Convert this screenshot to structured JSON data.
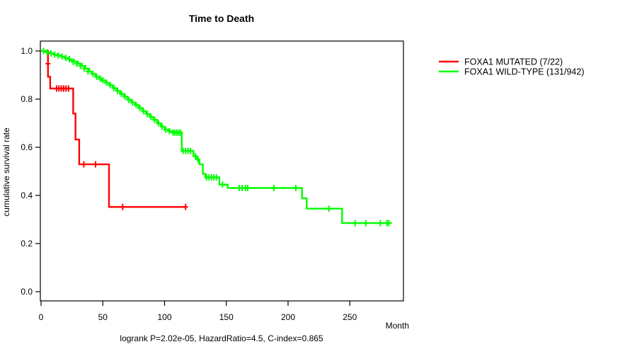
{
  "chart_data": {
    "type": "line",
    "subtype": "kaplan-meier-step-curves",
    "title": "Time to Death",
    "xlabel": "Month",
    "ylabel": "cumulative survival rate",
    "annotation": "logrank P=2.02e-05, HazardRatio=4.5, C-index=0.865",
    "xlim": [
      0,
      293
    ],
    "ylim": [
      0.0,
      1.0
    ],
    "grid": false,
    "legend_position": "outside-right",
    "xticks": [
      {
        "v": 0,
        "label": "0"
      },
      {
        "v": 50,
        "label": "50"
      },
      {
        "v": 100,
        "label": "100"
      },
      {
        "v": 150,
        "label": "150"
      },
      {
        "v": 200,
        "label": "200"
      },
      {
        "v": 250,
        "label": "250"
      }
    ],
    "yticks": [
      {
        "v": 0.0,
        "label": "0.0"
      },
      {
        "v": 0.2,
        "label": "0.2"
      },
      {
        "v": 0.4,
        "label": "0.4"
      },
      {
        "v": 0.6,
        "label": "0.6"
      },
      {
        "v": 0.8,
        "label": "0.8"
      },
      {
        "v": 1.0,
        "label": "1.0"
      }
    ],
    "series": [
      {
        "name": "FOXA1 MUTATED (7/22)",
        "color": "#FF0000",
        "start": [
          0,
          1.0
        ],
        "steps": [
          [
            5.6,
            0.893
          ],
          [
            7.4,
            0.844
          ],
          [
            26,
            0.74
          ],
          [
            27.9,
            0.632
          ],
          [
            30.9,
            0.529
          ],
          [
            55,
            0.352
          ]
        ],
        "end_t": 117,
        "censors": [
          [
            5.6,
            0.947
          ],
          [
            12.6,
            0.844
          ],
          [
            14.5,
            0.844
          ],
          [
            16.4,
            0.844
          ],
          [
            18.3,
            0.844
          ],
          [
            20.2,
            0.844
          ],
          [
            22.2,
            0.844
          ],
          [
            34.6,
            0.529
          ],
          [
            44.1,
            0.529
          ],
          [
            66.1,
            0.352
          ],
          [
            117,
            0.352
          ]
        ]
      },
      {
        "name": "FOXA1 WILD-TYPE (131/942)",
        "color": "#00FF00",
        "start": [
          0,
          1.0
        ],
        "steps": [
          [
            4,
            0.995
          ],
          [
            7,
            0.99
          ],
          [
            10,
            0.985
          ],
          [
            13,
            0.981
          ],
          [
            16,
            0.977
          ],
          [
            19,
            0.971
          ],
          [
            22,
            0.966
          ],
          [
            24,
            0.962
          ],
          [
            27,
            0.955
          ],
          [
            30,
            0.947
          ],
          [
            33,
            0.938
          ],
          [
            36,
            0.927
          ],
          [
            39,
            0.915
          ],
          [
            41,
            0.905
          ],
          [
            44,
            0.893
          ],
          [
            47,
            0.885
          ],
          [
            49,
            0.878
          ],
          [
            52,
            0.868
          ],
          [
            55,
            0.858
          ],
          [
            58,
            0.846
          ],
          [
            61,
            0.834
          ],
          [
            64,
            0.822
          ],
          [
            67,
            0.81
          ],
          [
            70,
            0.797
          ],
          [
            73,
            0.786
          ],
          [
            76,
            0.775
          ],
          [
            79,
            0.763
          ],
          [
            82,
            0.75
          ],
          [
            85,
            0.738
          ],
          [
            88,
            0.726
          ],
          [
            91,
            0.714
          ],
          [
            94,
            0.7
          ],
          [
            97,
            0.686
          ],
          [
            100,
            0.673
          ],
          [
            103,
            0.667
          ],
          [
            106,
            0.661
          ],
          [
            113.9,
            0.585
          ],
          [
            123.4,
            0.563
          ],
          [
            126.2,
            0.549
          ],
          [
            128.2,
            0.529
          ],
          [
            131,
            0.49
          ],
          [
            133,
            0.475
          ],
          [
            144.4,
            0.445
          ],
          [
            151.1,
            0.431
          ],
          [
            211.3,
            0.388
          ],
          [
            215.1,
            0.345
          ],
          [
            243.7,
            0.285
          ]
        ],
        "end_t": 284,
        "censors": [
          [
            2,
            1.0
          ],
          [
            5,
            0.995
          ],
          [
            8,
            0.99
          ],
          [
            11,
            0.985
          ],
          [
            14,
            0.981
          ],
          [
            17,
            0.977
          ],
          [
            20,
            0.971
          ],
          [
            23,
            0.966
          ],
          [
            26,
            0.955
          ],
          [
            29,
            0.947
          ],
          [
            32,
            0.938
          ],
          [
            35,
            0.927
          ],
          [
            38,
            0.915
          ],
          [
            42,
            0.905
          ],
          [
            45,
            0.893
          ],
          [
            48,
            0.885
          ],
          [
            50,
            0.878
          ],
          [
            53,
            0.868
          ],
          [
            56,
            0.858
          ],
          [
            59,
            0.846
          ],
          [
            62,
            0.834
          ],
          [
            65,
            0.822
          ],
          [
            68,
            0.81
          ],
          [
            71,
            0.797
          ],
          [
            74,
            0.786
          ],
          [
            77,
            0.775
          ],
          [
            80,
            0.763
          ],
          [
            83,
            0.75
          ],
          [
            86,
            0.738
          ],
          [
            89,
            0.726
          ],
          [
            92,
            0.714
          ],
          [
            95,
            0.7
          ],
          [
            98,
            0.686
          ],
          [
            101,
            0.673
          ],
          [
            104,
            0.667
          ],
          [
            107,
            0.661
          ],
          [
            108.5,
            0.661
          ],
          [
            110,
            0.661
          ],
          [
            111.5,
            0.661
          ],
          [
            113,
            0.661
          ],
          [
            115,
            0.585
          ],
          [
            117,
            0.585
          ],
          [
            119,
            0.585
          ],
          [
            121,
            0.585
          ],
          [
            125,
            0.563
          ],
          [
            127,
            0.549
          ],
          [
            134,
            0.475
          ],
          [
            136,
            0.475
          ],
          [
            138,
            0.475
          ],
          [
            140,
            0.475
          ],
          [
            142,
            0.475
          ],
          [
            147,
            0.445
          ],
          [
            160.5,
            0.431
          ],
          [
            162.8,
            0.431
          ],
          [
            165.6,
            0.431
          ],
          [
            167.3,
            0.431
          ],
          [
            188.5,
            0.431
          ],
          [
            206.3,
            0.431
          ],
          [
            233.2,
            0.345
          ],
          [
            254.3,
            0.285
          ],
          [
            262.9,
            0.285
          ],
          [
            274.7,
            0.285
          ],
          [
            280,
            0.285
          ],
          [
            281.5,
            0.285
          ]
        ]
      }
    ]
  }
}
